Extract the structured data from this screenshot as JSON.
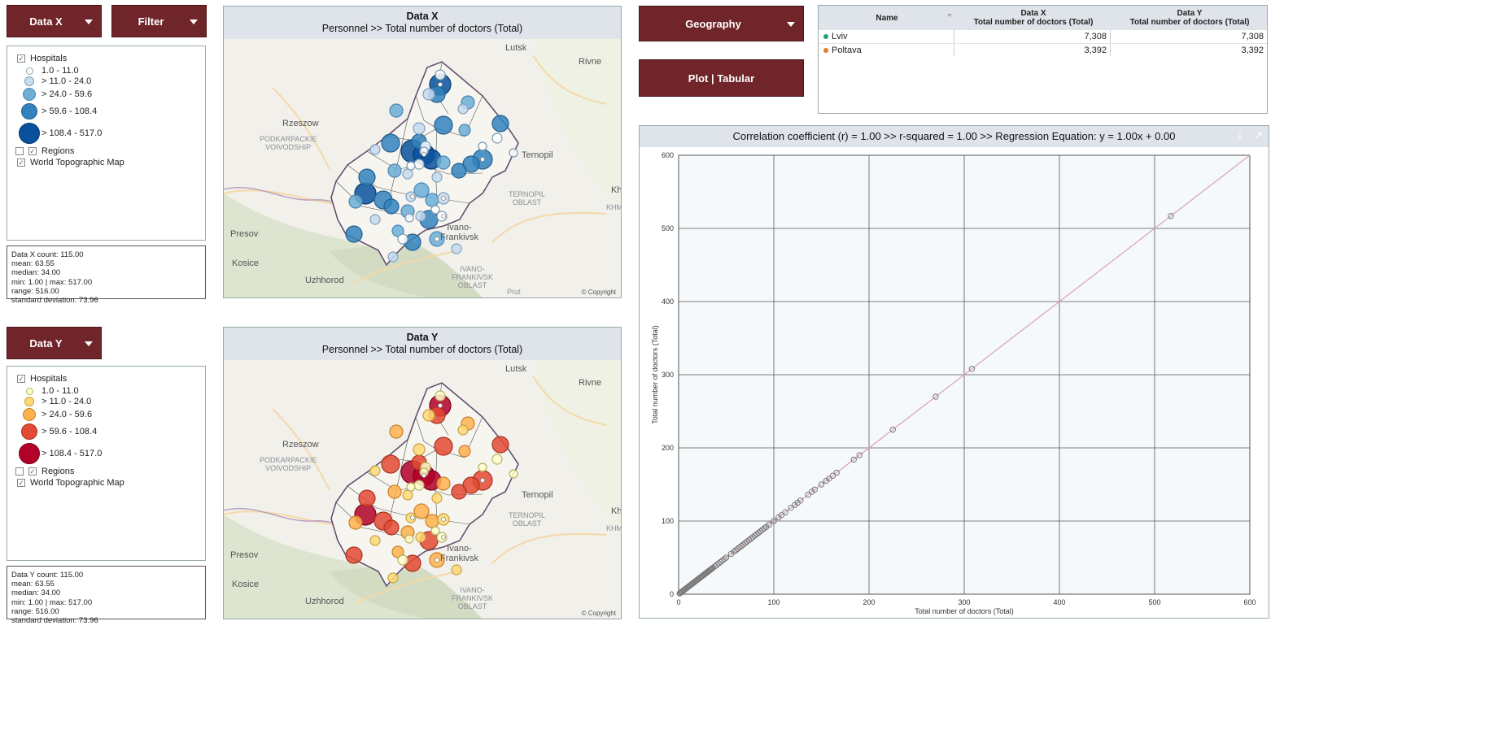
{
  "buttons": {
    "data_x": "Data X",
    "filter": "Filter",
    "data_y": "Data Y",
    "geography": "Geography",
    "plot_tabular": "Plot | Tabular"
  },
  "legend_x": {
    "hospitals": "Hospitals",
    "classes": [
      "1.0 - 11.0",
      "> 11.0 - 24.0",
      "> 24.0 - 59.6",
      "> 59.6 - 108.4",
      "> 108.4 - 517.0"
    ],
    "colors": [
      "#ffffff",
      "#c6dbef",
      "#6baed6",
      "#3182bd",
      "#08519c"
    ],
    "regions": "Regions",
    "basemap": "World Topographic Map"
  },
  "legend_y": {
    "hospitals": "Hospitals",
    "classes": [
      "1.0 - 11.0",
      "> 11.0 - 24.0",
      "> 24.0 - 59.6",
      "> 59.6 - 108.4",
      "> 108.4 - 517.0"
    ],
    "colors": [
      "#ffffcc",
      "#fed976",
      "#feb24c",
      "#e34a33",
      "#b30028"
    ],
    "regions": "Regions",
    "basemap": "World Topographic Map"
  },
  "stats_x": [
    "Data X count: 115.00",
    "mean: 63.55",
    "median: 34.00",
    "min: 1.00 | max: 517.00",
    "range: 516.00",
    "standard deviation: 73.96"
  ],
  "stats_y": [
    "Data Y count: 115.00",
    "mean: 63.55",
    "median: 34.00",
    "min: 1.00 | max: 517.00",
    "range: 516.00",
    "standard deviation: 73.96"
  ],
  "map_x": {
    "title": "Data X",
    "subtitle": "Personnel >>  Total number of doctors (Total)"
  },
  "map_y": {
    "title": "Data Y",
    "subtitle": "Personnel >>  Total number of doctors (Total)"
  },
  "map_labels": {
    "lutsk": "Lutsk",
    "rivne": "Rivne",
    "rzeszow": "Rzeszow",
    "podkarpackie": "PODKARPACKIE\nVOIVODSHIP",
    "ternopil": "Ternopil",
    "ternopil_oblast": "TERNOPIL\nOBLAST",
    "khmel": "KHMEL",
    "kh": "Kh",
    "presov": "Presov",
    "ivano": "Ivano-\nFrankivsk",
    "ivano_oblast": "IVANO-\nFRANKIVSK\nOBLAST",
    "kosice": "Kosice",
    "uzhhorod": "Uzhhorod",
    "prut": "Prut",
    "copyright": "© Copyright"
  },
  "table": {
    "headers": {
      "name": "Name",
      "data_x": "Data X",
      "data_x_sub": "Total number of doctors (Total)",
      "data_y": "Data Y",
      "data_y_sub": "Total number of doctors (Total)"
    },
    "rows": [
      {
        "name": "Lviv",
        "x": "7,308",
        "y": "7,308",
        "color": "#1aa37a"
      },
      {
        "name": "Poltava",
        "x": "3,392",
        "y": "3,392",
        "color": "#e07b2a"
      }
    ]
  },
  "chart_data": {
    "type": "scatter",
    "title": "Correlation coefficient (r) = 1.00  >> r-squared =  1.00 >> Regression Equation: y = 1.00x  + 0.00",
    "xlabel": "Total number of doctors (Total)",
    "ylabel": "Total number of doctors (Total)",
    "xlim": [
      0,
      600
    ],
    "ylim": [
      0,
      600
    ],
    "xticks": [
      0,
      100,
      200,
      300,
      400,
      500,
      600
    ],
    "yticks": [
      0,
      100,
      200,
      300,
      400,
      500,
      600
    ],
    "grid": true,
    "regression": {
      "slope": 1.0,
      "intercept": 0.0
    },
    "points": [
      1,
      2,
      3,
      4,
      5,
      6,
      7,
      8,
      9,
      10,
      11,
      12,
      13,
      14,
      15,
      16,
      17,
      18,
      19,
      20,
      21,
      22,
      23,
      24,
      25,
      26,
      27,
      28,
      29,
      30,
      31,
      32,
      33,
      34,
      35,
      36,
      38,
      40,
      42,
      44,
      46,
      48,
      50,
      55,
      58,
      60,
      62,
      64,
      66,
      68,
      70,
      72,
      74,
      76,
      78,
      80,
      82,
      84,
      86,
      88,
      90,
      92,
      95,
      100,
      105,
      108,
      112,
      118,
      122,
      125,
      128,
      136,
      140,
      143,
      150,
      155,
      158,
      162,
      166,
      184,
      190,
      225,
      270,
      308,
      517
    ]
  }
}
